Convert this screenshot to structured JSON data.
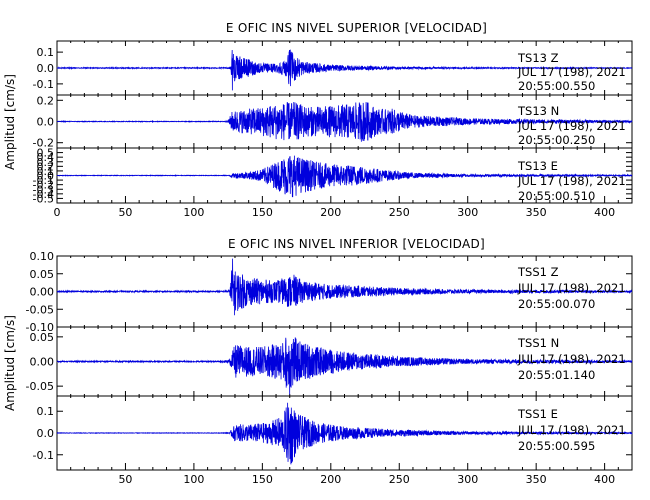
{
  "chart_data": [
    {
      "type": "line",
      "title": "E OFIC INS NIVEL SUPERIOR [VELOCIDAD]",
      "ylabel": "Amplitud [cm/s]",
      "xlim": [
        0,
        420
      ],
      "x_ticks": [
        "0",
        "50",
        "100",
        "150",
        "200",
        "250",
        "300",
        "350",
        "400"
      ],
      "trace_color": "#0000dd",
      "traces": [
        {
          "station": "TS13",
          "component": "Z",
          "date": "JUL 17 (198), 2021",
          "time": "20:55:00.550",
          "ylim": [
            -0.17,
            0.17
          ],
          "y_ticks": [
            {
              "v": 0.1,
              "t": "0.1"
            },
            {
              "v": 0.0,
              "t": "0.0"
            },
            {
              "v": -0.1,
              "t": "-0.1"
            }
          ],
          "onset": 127,
          "amp": 0.12,
          "envelope": [
            [
              125,
              0.005
            ],
            [
              127,
              0.02
            ],
            [
              128,
              0.15
            ],
            [
              130,
              0.08
            ],
            [
              135,
              0.07
            ],
            [
              150,
              0.03
            ],
            [
              160,
              0.03
            ],
            [
              167,
              0.05
            ],
            [
              170,
              0.12
            ],
            [
              172,
              0.1
            ],
            [
              180,
              0.04
            ],
            [
              200,
              0.02
            ],
            [
              250,
              0.008
            ],
            [
              300,
              0.004
            ],
            [
              420,
              0.002
            ]
          ]
        },
        {
          "station": "TS13",
          "component": "N",
          "date": "JUL 17 (198), 2021",
          "time": "20:55:00.250",
          "ylim": [
            -0.25,
            0.25
          ],
          "y_ticks": [
            {
              "v": 0.2,
              "t": "0.2"
            },
            {
              "v": 0.0,
              "t": "0.0"
            },
            {
              "v": -0.2,
              "t": "-0.2"
            }
          ],
          "onset": 125,
          "amp": 0.2,
          "envelope": [
            [
              120,
              0.005
            ],
            [
              125,
              0.01
            ],
            [
              128,
              0.1
            ],
            [
              140,
              0.12
            ],
            [
              150,
              0.14
            ],
            [
              160,
              0.17
            ],
            [
              172,
              0.19
            ],
            [
              185,
              0.14
            ],
            [
              200,
              0.15
            ],
            [
              215,
              0.17
            ],
            [
              225,
              0.2
            ],
            [
              235,
              0.12
            ],
            [
              245,
              0.12
            ],
            [
              260,
              0.06
            ],
            [
              300,
              0.03
            ],
            [
              350,
              0.02
            ],
            [
              420,
              0.01
            ]
          ]
        },
        {
          "station": "TS13",
          "component": "E",
          "date": "JUL 17 (198), 2021",
          "time": "20:55:00.510",
          "ylim": [
            -0.6,
            0.6
          ],
          "y_ticks": [
            {
              "v": 0.5,
              "t": "0.5"
            },
            {
              "v": 0.4,
              "t": "0.4"
            },
            {
              "v": 0.3,
              "t": "0.3"
            },
            {
              "v": 0.2,
              "t": "0.2"
            },
            {
              "v": 0.1,
              "t": "0.1"
            },
            {
              "v": 0.0,
              "t": "0.0"
            },
            {
              "v": -0.1,
              "t": "-0.1"
            },
            {
              "v": -0.2,
              "t": "-0.2"
            },
            {
              "v": -0.3,
              "t": "-0.3"
            },
            {
              "v": -0.4,
              "t": "-0.4"
            },
            {
              "v": -0.5,
              "t": "-0.5"
            }
          ],
          "onset": 126,
          "amp": 0.5,
          "envelope": [
            [
              125,
              0.01
            ],
            [
              130,
              0.06
            ],
            [
              140,
              0.08
            ],
            [
              150,
              0.14
            ],
            [
              160,
              0.3
            ],
            [
              170,
              0.5
            ],
            [
              178,
              0.4
            ],
            [
              190,
              0.3
            ],
            [
              200,
              0.25
            ],
            [
              220,
              0.22
            ],
            [
              240,
              0.12
            ],
            [
              260,
              0.06
            ],
            [
              300,
              0.03
            ],
            [
              420,
              0.01
            ]
          ]
        }
      ]
    },
    {
      "type": "line",
      "title": "E OFIC INS NIVEL INFERIOR [VELOCIDAD]",
      "ylabel": "Amplitud [cm/s]",
      "xlim": [
        0,
        420
      ],
      "x_ticks": [
        "50",
        "100",
        "150",
        "200",
        "250",
        "300",
        "350",
        "400"
      ],
      "trace_color": "#0000dd",
      "traces": [
        {
          "station": "TSS1",
          "component": "Z",
          "date": "JUL 17 (198), 2021",
          "time": "20:55:00.070",
          "ylim": [
            -0.1,
            0.1
          ],
          "y_ticks": [
            {
              "v": 0.1,
              "t": "0.10"
            },
            {
              "v": 0.05,
              "t": "0.05"
            },
            {
              "v": 0.0,
              "t": "0.00"
            },
            {
              "v": -0.05,
              "t": "-0.05"
            },
            {
              "v": -0.1,
              "t": "-0.10"
            }
          ],
          "onset": 127,
          "amp": 0.09,
          "envelope": [
            [
              120,
              0.003
            ],
            [
              126,
              0.006
            ],
            [
              128,
              0.1
            ],
            [
              130,
              0.06
            ],
            [
              140,
              0.04
            ],
            [
              160,
              0.03
            ],
            [
              172,
              0.05
            ],
            [
              180,
              0.03
            ],
            [
              200,
              0.02
            ],
            [
              250,
              0.01
            ],
            [
              300,
              0.005
            ],
            [
              420,
              0.003
            ]
          ]
        },
        {
          "station": "TSS1",
          "component": "N",
          "date": "JUL 17 (198), 2021",
          "time": "20:55:01.140",
          "ylim": [
            -0.07,
            0.07
          ],
          "y_ticks": [
            {
              "v": 0.05,
              "t": "0.05"
            },
            {
              "v": 0.0,
              "t": "0.00"
            },
            {
              "v": -0.05,
              "t": "-0.05"
            }
          ],
          "onset": 126,
          "amp": 0.06,
          "envelope": [
            [
              120,
              0.002
            ],
            [
              126,
              0.005
            ],
            [
              130,
              0.035
            ],
            [
              140,
              0.03
            ],
            [
              150,
              0.03
            ],
            [
              165,
              0.04
            ],
            [
              170,
              0.07
            ],
            [
              175,
              0.045
            ],
            [
              190,
              0.03
            ],
            [
              210,
              0.02
            ],
            [
              250,
              0.01
            ],
            [
              300,
              0.005
            ],
            [
              420,
              0.002
            ]
          ]
        },
        {
          "station": "TSS1",
          "component": "E",
          "date": "JUL 17 (198), 2021",
          "time": "20:55:00.595",
          "ylim": [
            -0.17,
            0.17
          ],
          "y_ticks": [
            {
              "v": 0.1,
              "t": "0.1"
            },
            {
              "v": 0.0,
              "t": "0.0"
            },
            {
              "v": -0.1,
              "t": "-0.1"
            }
          ],
          "onset": 127,
          "amp": 0.15,
          "envelope": [
            [
              120,
              0.002
            ],
            [
              126,
              0.004
            ],
            [
              130,
              0.04
            ],
            [
              140,
              0.04
            ],
            [
              155,
              0.05
            ],
            [
              165,
              0.08
            ],
            [
              170,
              0.17
            ],
            [
              175,
              0.09
            ],
            [
              190,
              0.05
            ],
            [
              210,
              0.03
            ],
            [
              250,
              0.015
            ],
            [
              300,
              0.007
            ],
            [
              420,
              0.003
            ]
          ]
        }
      ]
    }
  ]
}
